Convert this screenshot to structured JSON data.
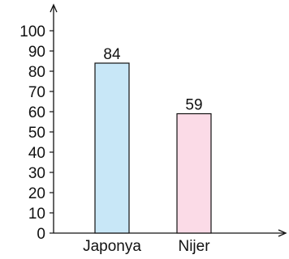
{
  "chart_data": {
    "type": "bar",
    "categories": [
      "Japonya",
      "Nijer"
    ],
    "values": [
      84,
      59
    ],
    "value_labels": [
      "84",
      "59"
    ],
    "bar_colors": [
      "#c8e7f7",
      "#fbdbe7"
    ],
    "bar_stroke": "#111111",
    "ylim": [
      0,
      100
    ],
    "yticks": [
      "0",
      "10",
      "20",
      "30",
      "40",
      "50",
      "60",
      "70",
      "80",
      "90",
      "100"
    ],
    "grid": false,
    "title": "",
    "xlabel": "",
    "ylabel": ""
  }
}
